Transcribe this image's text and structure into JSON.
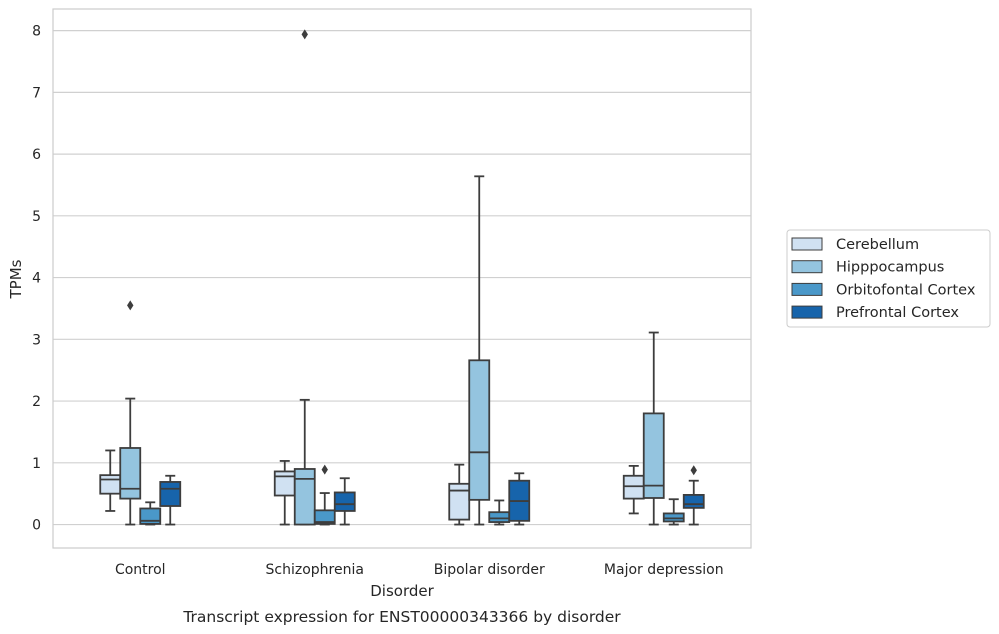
{
  "chart_data": {
    "type": "box",
    "title": "",
    "caption": "Transcript expression for ENST00000343366 by disorder",
    "xlabel": "Disorder",
    "ylabel": "TPMs",
    "ylim": [
      -0.38,
      8.35
    ],
    "yticks": [
      "0",
      "1",
      "2",
      "3",
      "4",
      "5",
      "6",
      "7",
      "8"
    ],
    "grid": true,
    "legend_position": "right",
    "categories": [
      "Control",
      "Schizophrenia",
      "Bipolar disorder",
      "Major depression"
    ],
    "series": [
      {
        "name": "Cerebellum",
        "color": "#d0e1f2",
        "boxes": [
          {
            "whisker_low": 0.22,
            "q1": 0.5,
            "median": 0.73,
            "q3": 0.8,
            "whisker_high": 1.2,
            "outliers": []
          },
          {
            "whisker_low": 0.0,
            "q1": 0.47,
            "median": 0.78,
            "q3": 0.86,
            "whisker_high": 1.03,
            "outliers": []
          },
          {
            "whisker_low": 0.0,
            "q1": 0.08,
            "median": 0.55,
            "q3": 0.66,
            "whisker_high": 0.97,
            "outliers": []
          },
          {
            "whisker_low": 0.18,
            "q1": 0.42,
            "median": 0.62,
            "q3": 0.79,
            "whisker_high": 0.95,
            "outliers": []
          }
        ]
      },
      {
        "name": "Hipppocampus",
        "color": "#94c4df",
        "boxes": [
          {
            "whisker_low": 0.0,
            "q1": 0.42,
            "median": 0.58,
            "q3": 1.24,
            "whisker_high": 2.04,
            "outliers": [
              3.55
            ]
          },
          {
            "whisker_low": 0.0,
            "q1": 0.0,
            "median": 0.74,
            "q3": 0.9,
            "whisker_high": 2.02,
            "outliers": [
              7.94
            ]
          },
          {
            "whisker_low": 0.0,
            "q1": 0.4,
            "median": 1.17,
            "q3": 2.66,
            "whisker_high": 5.64,
            "outliers": []
          },
          {
            "whisker_low": 0.0,
            "q1": 0.43,
            "median": 0.63,
            "q3": 1.8,
            "whisker_high": 3.11,
            "outliers": []
          }
        ]
      },
      {
        "name": "Orbitofontal Cortex",
        "color": "#4a98c9",
        "boxes": [
          {
            "whisker_low": 0.0,
            "q1": 0.01,
            "median": 0.06,
            "q3": 0.26,
            "whisker_high": 0.36,
            "outliers": []
          },
          {
            "whisker_low": 0.0,
            "q1": 0.01,
            "median": 0.04,
            "q3": 0.23,
            "whisker_high": 0.51,
            "outliers": [
              0.89
            ]
          },
          {
            "whisker_low": 0.0,
            "q1": 0.04,
            "median": 0.1,
            "q3": 0.2,
            "whisker_high": 0.39,
            "outliers": []
          },
          {
            "whisker_low": 0.0,
            "q1": 0.05,
            "median": 0.1,
            "q3": 0.18,
            "whisker_high": 0.41,
            "outliers": []
          }
        ]
      },
      {
        "name": "Prefrontal Cortex",
        "color": "#1764ab",
        "boxes": [
          {
            "whisker_low": 0.0,
            "q1": 0.3,
            "median": 0.58,
            "q3": 0.69,
            "whisker_high": 0.79,
            "outliers": []
          },
          {
            "whisker_low": 0.0,
            "q1": 0.22,
            "median": 0.33,
            "q3": 0.52,
            "whisker_high": 0.75,
            "outliers": []
          },
          {
            "whisker_low": 0.0,
            "q1": 0.06,
            "median": 0.38,
            "q3": 0.71,
            "whisker_high": 0.83,
            "outliers": []
          },
          {
            "whisker_low": 0.0,
            "q1": 0.27,
            "median": 0.33,
            "q3": 0.48,
            "whisker_high": 0.71,
            "outliers": [
              0.88
            ]
          }
        ]
      }
    ]
  }
}
